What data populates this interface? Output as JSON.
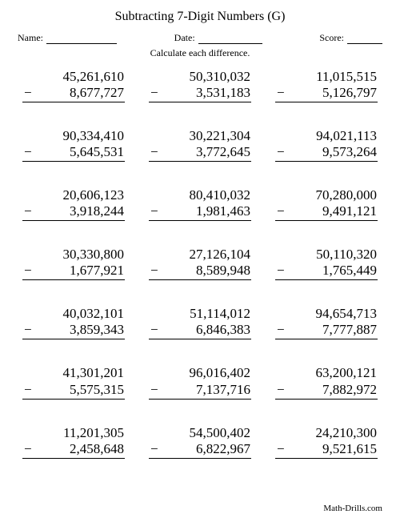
{
  "title": "Subtracting 7-Digit Numbers (G)",
  "labels": {
    "name": "Name:",
    "date": "Date:",
    "score": "Score:"
  },
  "instruction": "Calculate each difference.",
  "minus_sign": "−",
  "blank_widths": {
    "name": 88,
    "date": 80,
    "score": 44
  },
  "problems": [
    {
      "m": "45,261,610",
      "s": "8,677,727"
    },
    {
      "m": "50,310,032",
      "s": "3,531,183"
    },
    {
      "m": "11,015,515",
      "s": "5,126,797"
    },
    {
      "m": "90,334,410",
      "s": "5,645,531"
    },
    {
      "m": "30,221,304",
      "s": "3,772,645"
    },
    {
      "m": "94,021,113",
      "s": "9,573,264"
    },
    {
      "m": "20,606,123",
      "s": "3,918,244"
    },
    {
      "m": "80,410,032",
      "s": "1,981,463"
    },
    {
      "m": "70,280,000",
      "s": "9,491,121"
    },
    {
      "m": "30,330,800",
      "s": "1,677,921"
    },
    {
      "m": "27,126,104",
      "s": "8,589,948"
    },
    {
      "m": "50,110,320",
      "s": "1,765,449"
    },
    {
      "m": "40,032,101",
      "s": "3,859,343"
    },
    {
      "m": "51,114,012",
      "s": "6,846,383"
    },
    {
      "m": "94,654,713",
      "s": "7,777,887"
    },
    {
      "m": "41,301,201",
      "s": "5,575,315"
    },
    {
      "m": "96,016,402",
      "s": "7,137,716"
    },
    {
      "m": "63,200,121",
      "s": "7,882,972"
    },
    {
      "m": "11,201,305",
      "s": "2,458,648"
    },
    {
      "m": "54,500,402",
      "s": "6,822,967"
    },
    {
      "m": "24,210,300",
      "s": "9,521,615"
    }
  ],
  "footer": "Math-Drills.com",
  "colors": {
    "text": "#000000",
    "background": "#ffffff",
    "rule": "#000000"
  },
  "fonts": {
    "family": "Times New Roman",
    "title_size": 16,
    "body_size": 12,
    "problem_size": 17
  }
}
